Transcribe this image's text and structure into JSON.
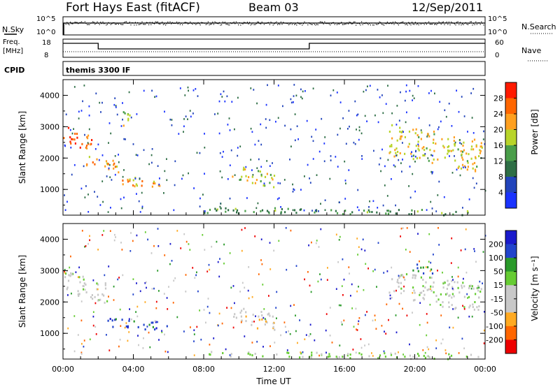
{
  "header": {
    "station": "Fort Hays East (fitACF)",
    "beam": "Beam 03",
    "date": "12/Sep/2011"
  },
  "top_panels": {
    "noise": {
      "left_label": "N.Sky",
      "right_label": "N.Search",
      "left_ticks": [
        "10^5",
        "10^0"
      ],
      "right_ticks": [
        "10^5",
        "10^0"
      ]
    },
    "freq": {
      "left_label_1": "Freq.",
      "left_label_2": "[MHz]",
      "right_label": "Nave",
      "left_ticks": [
        "18",
        "8"
      ],
      "right_ticks": [
        "60",
        "0"
      ],
      "freq_step_hours": [
        [
          0,
          2.0,
          "high"
        ],
        [
          2.0,
          14.0,
          "low"
        ],
        [
          14.0,
          24.0,
          "high"
        ]
      ]
    },
    "cpid": {
      "label": "CPID",
      "value": "themis 3300 IF"
    }
  },
  "chart_data": [
    {
      "type": "heatmap",
      "name": "power",
      "xlabel": "",
      "ylabel": "Slant Range [km]",
      "xlim": [
        0,
        24
      ],
      "ylim": [
        180,
        4500
      ],
      "y_ticks": [
        1000,
        2000,
        3000,
        4000
      ],
      "colorbar": {
        "label": "Power [dB]",
        "ticks": [
          "28",
          "24",
          "20",
          "16",
          "12",
          "8",
          "4"
        ],
        "range": [
          0,
          32
        ]
      },
      "echo_regions": [
        {
          "t": [
            0.0,
            1.6
          ],
          "r": [
            2200,
            3100
          ],
          "level": 28
        },
        {
          "t": [
            1.3,
            3.2
          ],
          "r": [
            1500,
            2100
          ],
          "level": 24
        },
        {
          "t": [
            3.0,
            6.0
          ],
          "r": [
            1050,
            1450
          ],
          "level": 22
        },
        {
          "t": [
            9.5,
            12.0
          ],
          "r": [
            1100,
            1800
          ],
          "level": 18
        },
        {
          "t": [
            18.5,
            23.8
          ],
          "r": [
            1600,
            3100
          ],
          "level": 20
        },
        {
          "t": [
            3.3,
            3.8
          ],
          "r": [
            2800,
            3800
          ],
          "level": 16
        },
        {
          "t": [
            8.0,
            24.0
          ],
          "r": [
            200,
            450
          ],
          "level": 12
        }
      ]
    },
    {
      "type": "heatmap",
      "name": "velocity",
      "xlabel": "Time UT",
      "ylabel": "Slant Range [km]",
      "xlim": [
        0,
        24
      ],
      "ylim": [
        180,
        4500
      ],
      "y_ticks": [
        1000,
        2000,
        3000,
        4000
      ],
      "x_ticks": [
        "00:00",
        "04:00",
        "08:00",
        "12:00",
        "16:00",
        "20:00",
        "00:00"
      ],
      "colorbar": {
        "label": "Velocity [m s⁻¹]",
        "ticks": [
          "200",
          "100",
          "50",
          "15",
          "-15",
          "-50",
          "-100",
          "-200"
        ],
        "range": [
          -250,
          250
        ]
      },
      "echo_regions": [
        {
          "t": [
            0.0,
            2.5
          ],
          "r": [
            2000,
            3000
          ],
          "level": 0
        },
        {
          "t": [
            2.5,
            6.0
          ],
          "r": [
            1100,
            1500
          ],
          "level": 200
        },
        {
          "t": [
            9.5,
            12.0
          ],
          "r": [
            1100,
            1900
          ],
          "level": -60
        },
        {
          "t": [
            18.5,
            23.8
          ],
          "r": [
            1700,
            3000
          ],
          "level": 0
        },
        {
          "t": [
            19.5,
            21.0
          ],
          "r": [
            2900,
            3300
          ],
          "level": 150
        },
        {
          "t": [
            8.0,
            24.0
          ],
          "r": [
            200,
            450
          ],
          "level": 40
        }
      ]
    }
  ],
  "colors": {
    "power_scale": [
      "#1a33ff",
      "#2244bb",
      "#2e6e45",
      "#4a9e4a",
      "#b8d42a",
      "#ffa020",
      "#ff6600",
      "#ff1a00"
    ],
    "velocity_scale": [
      "#ee0000",
      "#ff6600",
      "#ffaa22",
      "#c8c8c8",
      "#c8c8c8",
      "#66cc33",
      "#2a9a2a",
      "#2244cc",
      "#1a1acc"
    ]
  }
}
